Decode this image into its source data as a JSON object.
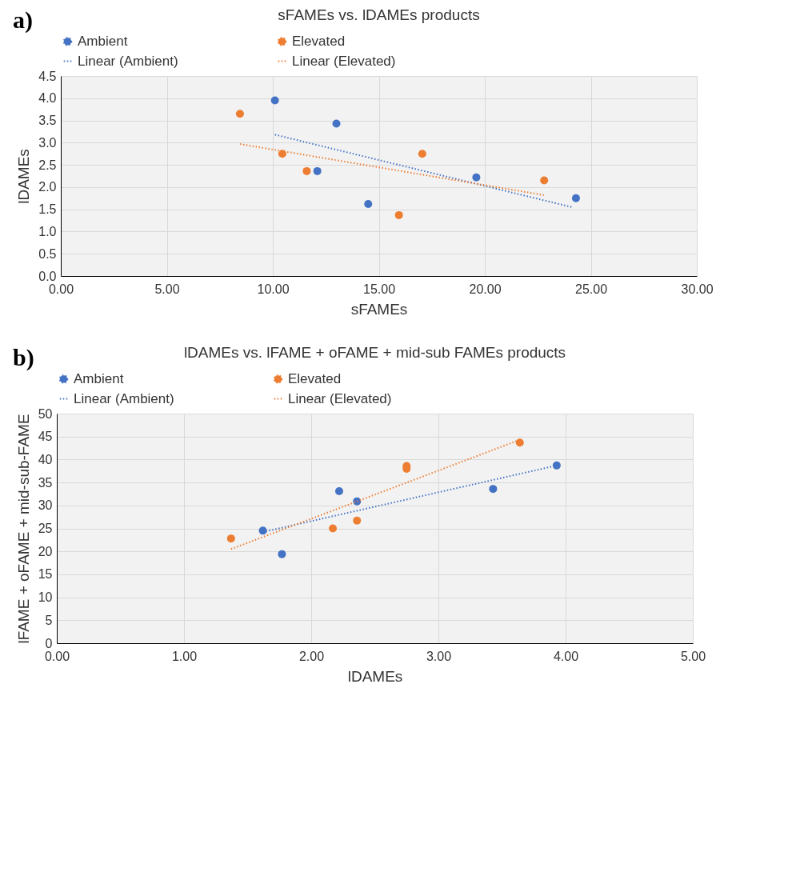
{
  "chart_data": [
    {
      "type": "scatter",
      "title": "sFAMEs vs. lDAMEs products",
      "xlabel": "sFAMEs",
      "ylabel": "lDAMEs",
      "annotations": [
        "a)"
      ],
      "series": [
        {
          "name": "Ambient",
          "type": "scatter",
          "marker": "circle",
          "color": "#4472c4",
          "x": [
            10.1,
            13.0,
            12.1,
            14.5,
            19.6,
            24.3
          ],
          "values": [
            3.95,
            3.43,
            2.36,
            1.62,
            2.22,
            1.75
          ]
        },
        {
          "name": "Elevated",
          "type": "scatter",
          "marker": "circle",
          "color": "#ed7d31",
          "x": [
            8.45,
            10.45,
            11.6,
            17.05,
            15.95,
            22.8
          ],
          "values": [
            3.65,
            2.75,
            2.36,
            2.75,
            1.37,
            2.15
          ]
        },
        {
          "name": "Linear (Ambient)",
          "type": "line",
          "line_style": "dotted",
          "color": "#4472c4",
          "x": [
            10.1,
            24.1
          ],
          "values": [
            3.18,
            1.55
          ]
        },
        {
          "name": "Linear (Elevated)",
          "type": "line",
          "line_style": "dotted",
          "color": "#ed7d31",
          "x": [
            8.45,
            22.8
          ],
          "values": [
            2.97,
            1.82
          ]
        }
      ],
      "xlim": [
        0,
        30
      ],
      "xticks": [
        {
          "value": 0,
          "label": "0.00"
        },
        {
          "value": 5,
          "label": "5.00"
        },
        {
          "value": 10,
          "label": "10.00"
        },
        {
          "value": 15,
          "label": "15.00"
        },
        {
          "value": 20,
          "label": "20.00"
        },
        {
          "value": 25,
          "label": "25.00"
        },
        {
          "value": 30,
          "label": "30.00"
        }
      ],
      "ylim": [
        0,
        4.5
      ],
      "yticks": [
        {
          "value": 0,
          "label": "0.0"
        },
        {
          "value": 0.5,
          "label": "0.5"
        },
        {
          "value": 1,
          "label": "1.0"
        },
        {
          "value": 1.5,
          "label": "1.5"
        },
        {
          "value": 2,
          "label": "2.0"
        },
        {
          "value": 2.5,
          "label": "2.5"
        },
        {
          "value": 3,
          "label": "3.0"
        },
        {
          "value": 3.5,
          "label": "3.5"
        },
        {
          "value": 4,
          "label": "4.0"
        },
        {
          "value": 4.5,
          "label": "4.5"
        }
      ],
      "grid": true,
      "legend": "top"
    },
    {
      "type": "scatter",
      "title": "lDAMEs vs. lFAME + oFAME + mid-sub FAMEs products",
      "xlabel": "lDAMEs",
      "ylabel": "lFAME + oFAME + mid-sub-FAME",
      "annotations": [
        "b)"
      ],
      "series": [
        {
          "name": "Ambient",
          "type": "scatter",
          "marker": "circle",
          "color": "#4472c4",
          "x": [
            1.62,
            1.77,
            2.22,
            2.36,
            3.43,
            3.93
          ],
          "values": [
            24.5,
            19.4,
            33.1,
            30.9,
            33.6,
            38.7
          ]
        },
        {
          "name": "Elevated",
          "type": "scatter",
          "marker": "circle",
          "color": "#ed7d31",
          "x": [
            1.37,
            2.17,
            2.36,
            2.75,
            2.75,
            3.64
          ],
          "values": [
            22.8,
            25.0,
            26.7,
            38.6,
            38.0,
            43.7
          ]
        },
        {
          "name": "Linear (Ambient)",
          "type": "line",
          "line_style": "dotted",
          "color": "#4472c4",
          "x": [
            1.62,
            3.93
          ],
          "values": [
            24.2,
            38.7
          ]
        },
        {
          "name": "Linear (Elevated)",
          "type": "line",
          "line_style": "dotted",
          "color": "#ed7d31",
          "x": [
            1.37,
            3.64
          ],
          "values": [
            20.5,
            44.3
          ]
        }
      ],
      "xlim": [
        0,
        5
      ],
      "xticks": [
        {
          "value": 0,
          "label": "0.00"
        },
        {
          "value": 1,
          "label": "1.00"
        },
        {
          "value": 2,
          "label": "2.00"
        },
        {
          "value": 3,
          "label": "3.00"
        },
        {
          "value": 4,
          "label": "4.00"
        },
        {
          "value": 5,
          "label": "5.00"
        }
      ],
      "ylim": [
        0,
        50
      ],
      "yticks": [
        0,
        5,
        10,
        15,
        20,
        25,
        30,
        35,
        40,
        45,
        50
      ],
      "grid": true,
      "legend": "top"
    }
  ]
}
